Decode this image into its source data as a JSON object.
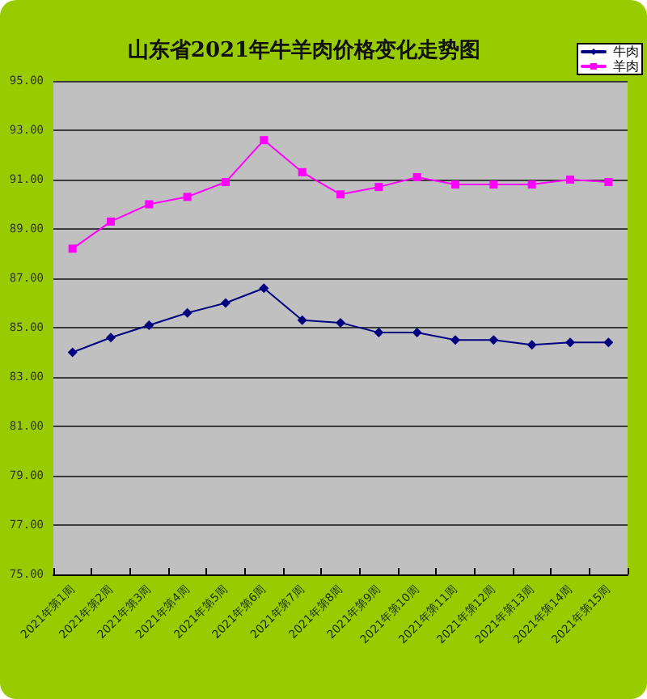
{
  "chart_data": {
    "type": "line",
    "title": "山东省2021年牛羊肉价格变化走势图",
    "categories": [
      "2021年第1周",
      "2021年第2周",
      "2021年第3周",
      "2021年第4周",
      "2021年第5周",
      "2021年第6周",
      "2021年第7周",
      "2021年第8周",
      "2021年第9周",
      "2021年第10周",
      "2021年第11周",
      "2021年第12周",
      "2021年第13周",
      "2021年第14周",
      "2021年第15周"
    ],
    "series": [
      {
        "name": "牛肉",
        "color": "#000080",
        "marker": "diamond",
        "values": [
          84.0,
          84.6,
          85.1,
          85.6,
          86.0,
          86.6,
          85.3,
          85.2,
          84.8,
          84.8,
          84.5,
          84.5,
          84.3,
          84.4,
          84.4
        ]
      },
      {
        "name": "羊肉",
        "color": "#ff00ff",
        "marker": "square",
        "values": [
          88.2,
          89.3,
          90.0,
          90.3,
          90.9,
          92.6,
          91.3,
          90.4,
          90.7,
          91.1,
          90.8,
          90.8,
          90.8,
          91.0,
          90.9
        ]
      }
    ],
    "ylim": [
      75,
      95
    ],
    "yticks": [
      {
        "value": 75,
        "label": "75.00"
      },
      {
        "value": 77,
        "label": "77.00"
      },
      {
        "value": 79,
        "label": "79.00"
      },
      {
        "value": 81,
        "label": "81.00"
      },
      {
        "value": 83,
        "label": "83.00"
      },
      {
        "value": 85,
        "label": "85.00"
      },
      {
        "value": 87,
        "label": "87.00"
      },
      {
        "value": 89,
        "label": "89.00"
      },
      {
        "value": 91,
        "label": "91.00"
      },
      {
        "value": 93,
        "label": "93.00"
      },
      {
        "value": 95,
        "label": "95.00"
      }
    ],
    "grid": "y",
    "legend": "top right"
  }
}
